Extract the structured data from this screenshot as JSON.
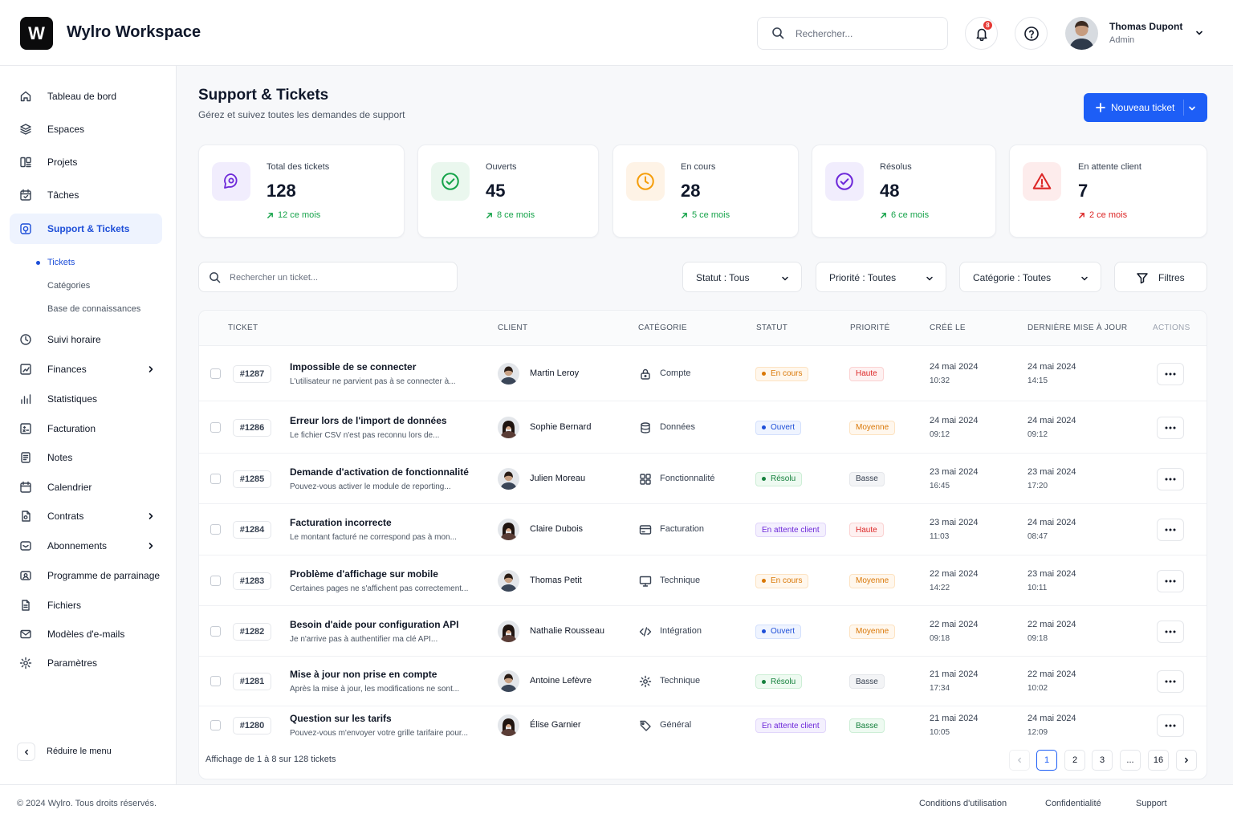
{
  "app": {
    "logo_letter": "W",
    "title": "Wylro Workspace"
  },
  "header": {
    "search_placeholder": "Rechercher...",
    "notification_count": "8",
    "user": {
      "name": "Thomas Dupont",
      "role": "Admin"
    }
  },
  "sidebar": {
    "items": [
      {
        "label": "Tableau de bord",
        "icon": "home-icon"
      },
      {
        "label": "Espaces",
        "icon": "layers-icon"
      },
      {
        "label": "Projets",
        "icon": "projects-icon"
      },
      {
        "label": "Tâches",
        "icon": "calendar-check-icon"
      },
      {
        "label": "Support & Tickets",
        "icon": "support-icon",
        "active": true
      },
      {
        "label": "Suivi horaire",
        "icon": "clock-icon"
      },
      {
        "label": "Finances",
        "icon": "finance-icon",
        "has_children": true
      },
      {
        "label": "Statistiques",
        "icon": "stats-icon"
      },
      {
        "label": "Facturation",
        "icon": "billing-icon"
      },
      {
        "label": "Notes",
        "icon": "notes-icon"
      },
      {
        "label": "Calendrier",
        "icon": "calendar-icon"
      },
      {
        "label": "Contrats",
        "icon": "contract-icon",
        "has_children": true
      },
      {
        "label": "Abonnements",
        "icon": "subscription-icon",
        "has_children": true
      },
      {
        "label": "Programme de parrainage",
        "icon": "referral-icon"
      },
      {
        "label": "Fichiers",
        "icon": "file-icon"
      },
      {
        "label": "Modèles d'e-mails",
        "icon": "mail-icon"
      },
      {
        "label": "Paramètres",
        "icon": "gear-icon"
      }
    ],
    "sub_items": [
      {
        "label": "Tickets",
        "active": true
      },
      {
        "label": "Catégories"
      },
      {
        "label": "Base de connaissances"
      }
    ],
    "collapse_label": "Réduire le menu"
  },
  "page": {
    "title": "Support & Tickets",
    "subtitle": "Gérez et suivez toutes les demandes de support",
    "new_ticket_label": "Nouveau ticket"
  },
  "stats": [
    {
      "label": "Total des tickets",
      "value": "128",
      "trend": "12 ce mois",
      "trend_color": "#16a34a",
      "icon": "ticket-chat-icon",
      "accent": "#6d28d9",
      "bg": "#f1edfd"
    },
    {
      "label": "Ouverts",
      "value": "45",
      "trend": "8 ce mois",
      "trend_color": "#16a34a",
      "icon": "check-circle-icon",
      "accent": "#16a34a",
      "bg": "#eaf7ee"
    },
    {
      "label": "En cours",
      "value": "28",
      "trend": "5 ce mois",
      "trend_color": "#16a34a",
      "icon": "clock-icon",
      "accent": "#f59e0b",
      "bg": "#fef3e6"
    },
    {
      "label": "Résolus",
      "value": "48",
      "trend": "6 ce mois",
      "trend_color": "#16a34a",
      "icon": "check-circle-icon",
      "accent": "#6d28d9",
      "bg": "#f1edfd"
    },
    {
      "label": "En attente client",
      "value": "7",
      "trend": "2 ce mois",
      "trend_color": "#dc2626",
      "icon": "warning-icon",
      "accent": "#dc2626",
      "bg": "#fdecec"
    }
  ],
  "filters": {
    "search_placeholder": "Rechercher un ticket...",
    "status": "Statut : Tous",
    "priority": "Priorité : Toutes",
    "category": "Catégorie : Toutes",
    "filters_label": "Filtres"
  },
  "table": {
    "columns": [
      "TICKET",
      "CLIENT",
      "CATÉGORIE",
      "STATUT",
      "PRIORITÉ",
      "CRÉÉ LE",
      "DERNIÈRE MISE À JOUR",
      "ACTIONS"
    ],
    "rows": [
      {
        "id": "#1287",
        "title": "Impossible de se connecter",
        "desc": "L'utilisateur ne parvient pas à se connecter à...",
        "client": "Martin Leroy",
        "gender": "m",
        "category": "Compte",
        "cat_icon": "lock-icon",
        "status": "En cours",
        "priority": "Haute",
        "created_date": "24 mai 2024",
        "created_time": "10:32",
        "updated_date": "24 mai 2024",
        "updated_time": "14:15"
      },
      {
        "id": "#1286",
        "title": "Erreur lors de l'import de données",
        "desc": "Le fichier CSV n'est pas reconnu lors de...",
        "client": "Sophie Bernard",
        "gender": "f",
        "category": "Données",
        "cat_icon": "database-icon",
        "status": "Ouvert",
        "priority": "Moyenne",
        "created_date": "24 mai 2024",
        "created_time": "09:12",
        "updated_date": "24 mai 2024",
        "updated_time": "09:12"
      },
      {
        "id": "#1285",
        "title": "Demande d'activation de fonctionnalité",
        "desc": "Pouvez-vous activer le module de reporting...",
        "client": "Julien Moreau",
        "gender": "m",
        "category": "Fonctionnalité",
        "cat_icon": "grid-icon",
        "status": "Résolu",
        "priority": "Basse",
        "created_date": "23 mai 2024",
        "created_time": "16:45",
        "updated_date": "23 mai 2024",
        "updated_time": "17:20"
      },
      {
        "id": "#1284",
        "title": "Facturation incorrecte",
        "desc": "Le montant facturé ne correspond pas à mon...",
        "client": "Claire Dubois",
        "gender": "f",
        "category": "Facturation",
        "cat_icon": "credit-card-icon",
        "status": "En attente client",
        "priority": "Haute",
        "created_date": "23 mai 2024",
        "created_time": "11:03",
        "updated_date": "24 mai 2024",
        "updated_time": "08:47"
      },
      {
        "id": "#1283",
        "title": "Problème d'affichage sur mobile",
        "desc": "Certaines pages ne s'affichent pas correctement...",
        "client": "Thomas Petit",
        "gender": "m",
        "category": "Technique",
        "cat_icon": "monitor-icon",
        "status": "En cours",
        "priority": "Moyenne",
        "created_date": "22 mai 2024",
        "created_time": "14:22",
        "updated_date": "23 mai 2024",
        "updated_time": "10:11"
      },
      {
        "id": "#1282",
        "title": "Besoin d'aide pour configuration API",
        "desc": "Je n'arrive pas à authentifier ma clé API...",
        "client": "Nathalie Rousseau",
        "gender": "f",
        "category": "Intégration",
        "cat_icon": "code-icon",
        "status": "Ouvert",
        "priority": "Moyenne",
        "created_date": "22 mai 2024",
        "created_time": "09:18",
        "updated_date": "22 mai 2024",
        "updated_time": "09:18"
      },
      {
        "id": "#1281",
        "title": "Mise à jour non prise en compte",
        "desc": "Après la mise à jour, les modifications ne sont...",
        "client": "Antoine Lefèvre",
        "gender": "m",
        "category": "Technique",
        "cat_icon": "gear-icon",
        "status": "Résolu",
        "priority": "Basse",
        "created_date": "21 mai 2024",
        "created_time": "17:34",
        "updated_date": "22 mai 2024",
        "updated_time": "10:02"
      },
      {
        "id": "#1280",
        "title": "Question sur les tarifs",
        "desc": "Pouvez-vous m'envoyer votre grille tarifaire pour...",
        "client": "Élise Garnier",
        "gender": "f",
        "category": "Général",
        "cat_icon": "tag-icon",
        "status": "En attente client",
        "priority": "Basse",
        "created_date": "21 mai 2024",
        "created_time": "10:05",
        "updated_date": "24 mai 2024",
        "updated_time": "12:09"
      }
    ]
  },
  "status_styles": {
    "En cours": {
      "color": "#d97706",
      "bg": "#fff7ed",
      "border": "#fde3c2",
      "dot": true
    },
    "Ouvert": {
      "color": "#1d4ed8",
      "bg": "#eff4ff",
      "border": "#d3e0fd",
      "dot": true
    },
    "Résolu": {
      "color": "#15803d",
      "bg": "#eefaf1",
      "border": "#cdeed6",
      "dot": true
    },
    "En attente client": {
      "color": "#6d28d9",
      "bg": "#f4f0fe",
      "border": "#e1d6fb",
      "dot": false
    }
  },
  "priority_styles": {
    "Haute": {
      "color": "#dc2626",
      "bg": "#fef1f1",
      "border": "#fbd2d2"
    },
    "Moyenne": {
      "color": "#d97706",
      "bg": "#fff7ed",
      "border": "#fde3c2"
    },
    "Basse": {
      "color": "#374151",
      "bg": "#f3f4f6",
      "border": "#e5e7eb"
    }
  },
  "basse_row_8": {
    "color": "#15803d",
    "bg": "#eefaf1",
    "border": "#cdeed6"
  },
  "pagination": {
    "info": "Affichage de 1 à 8 sur 128 tickets",
    "pages": [
      "1",
      "2",
      "3",
      "...",
      "16"
    ],
    "current": "1"
  },
  "footer": {
    "copyright": "© 2024 Wylro. Tous droits réservés.",
    "links": [
      "Conditions d'utilisation",
      "Confidentialité",
      "Support"
    ]
  }
}
